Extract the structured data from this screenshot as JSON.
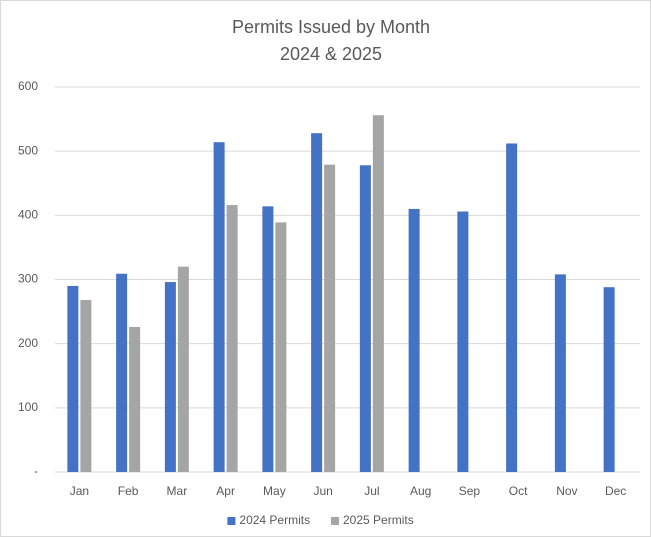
{
  "chart_data": {
    "type": "bar",
    "title": "Permits Issued by Month",
    "subtitle": "2024 & 2025",
    "categories": [
      "Jan",
      "Feb",
      "Mar",
      "Apr",
      "May",
      "Jun",
      "Jul",
      "Aug",
      "Sep",
      "Oct",
      "Nov",
      "Dec"
    ],
    "series": [
      {
        "name": "2024 Permits",
        "color": "#4472c4",
        "values": [
          290,
          309,
          296,
          514,
          414,
          528,
          478,
          410,
          406,
          512,
          308,
          288
        ]
      },
      {
        "name": "2025 Permits",
        "color": "#a5a5a5",
        "values": [
          268,
          226,
          320,
          416,
          389,
          479,
          556,
          null,
          null,
          null,
          null,
          null
        ]
      }
    ],
    "ylim": [
      0,
      600
    ],
    "yticks": [
      {
        "value": 0,
        "label": "-"
      },
      100,
      200,
      300,
      400,
      500,
      600
    ],
    "grid": true,
    "legend": "bottom"
  }
}
